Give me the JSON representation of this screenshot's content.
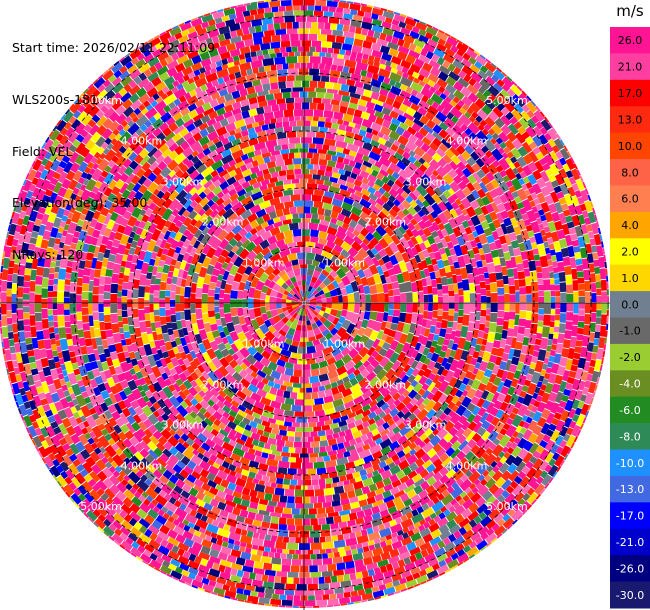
{
  "info": {
    "start_time": "Start time: 2026/02/11 22:11:09",
    "instrument": "WLS200s-181",
    "field": "Field: VEL",
    "elevation": "Elevation(deg): 35.00",
    "nrays": "NRays: 120"
  },
  "ring_labels": [
    "1.00km",
    "2.00km",
    "3.00km",
    "4.00km",
    "5.00km"
  ],
  "colorbar": {
    "unit": "m/s",
    "ticks": [
      "26.0",
      "21.0",
      "17.0",
      "13.0",
      "10.0",
      "8.0",
      "6.0",
      "4.0",
      "2.0",
      "1.0",
      "0.0",
      "-1.0",
      "-2.0",
      "-4.0",
      "-6.0",
      "-8.0",
      "-10.0",
      "-13.0",
      "-17.0",
      "-21.0",
      "-26.0",
      "-30.0"
    ],
    "colors": [
      "#ff1493",
      "#ff3fa0",
      "#ff0000",
      "#ff2a10",
      "#ff4500",
      "#ff6347",
      "#ff7f50",
      "#ffa500",
      "#ffff00",
      "#ffd700",
      "#708090",
      "#696969",
      "#9acd32",
      "#6b8e23",
      "#228b22",
      "#2e8b57",
      "#1e90ff",
      "#4169e1",
      "#0000ff",
      "#0000cd",
      "#000080",
      "#191970"
    ]
  }
}
